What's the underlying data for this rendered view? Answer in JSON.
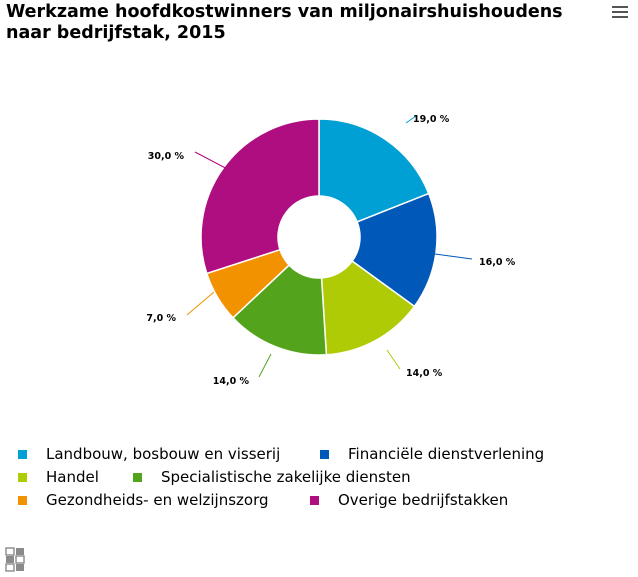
{
  "chart_data": {
    "type": "pie",
    "title": "Werkzame hoofdkostwinners van miljonairshuishoudens naar bedrijfstak, 2015",
    "donut": true,
    "unit": "%",
    "series": [
      {
        "name": "Landbouw, bosbouw en visserij",
        "value": 19.0,
        "label": "19,0 %",
        "color": "#009fd4"
      },
      {
        "name": "Financiële dienstverlening",
        "value": 16.0,
        "label": "16,0 %",
        "color": "#0058b8"
      },
      {
        "name": "Handel",
        "value": 14.0,
        "label": "14,0 %",
        "color": "#afcb05"
      },
      {
        "name": "Specialistische zakelijke diensten",
        "value": 14.0,
        "label": "14,0 %",
        "color": "#53a31d"
      },
      {
        "name": "Gezondheids- en welzijnszorg",
        "value": 7.0,
        "label": "7,0 %",
        "color": "#f39200"
      },
      {
        "name": "Overige bedrijfstakken",
        "value": 30.0,
        "label": "30,0 %",
        "color": "#af0e80"
      }
    ],
    "legend_position": "bottom"
  },
  "menu": {
    "icon": "hamburger-menu-icon"
  },
  "logo": {
    "icon": "cbs-logo-icon"
  }
}
